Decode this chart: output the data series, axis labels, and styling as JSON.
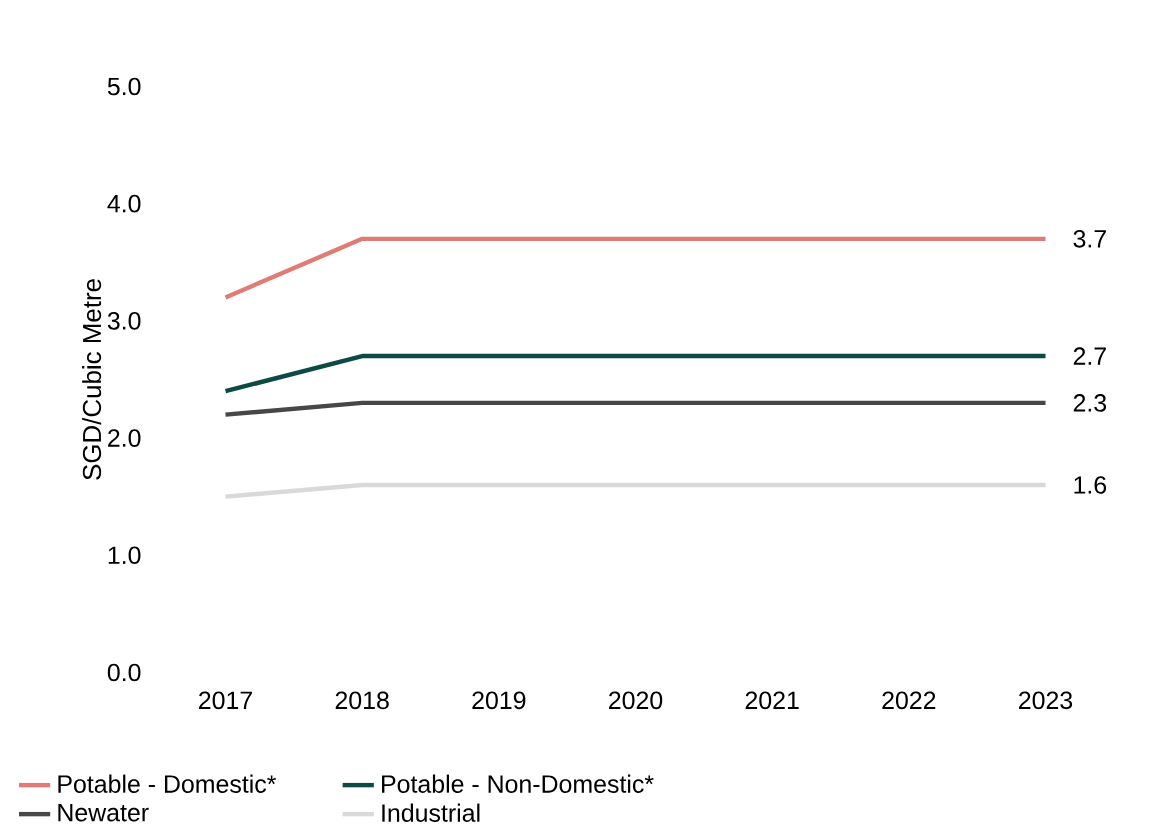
{
  "chart_data": {
    "type": "line",
    "ylabel": "SGD/Cubic Metre",
    "categories": [
      "2017",
      "2018",
      "2019",
      "2020",
      "2021",
      "2022",
      "2023"
    ],
    "series": [
      {
        "name": "Potable - Domestic*",
        "color": "#e07b76",
        "values": [
          3.2,
          3.7,
          3.7,
          3.7,
          3.7,
          3.7,
          3.7
        ],
        "value_labels": [
          null,
          null,
          null,
          null,
          null,
          null,
          "3.7"
        ]
      },
      {
        "name": "Potable - Non-Domestic*",
        "color": "#0b4a45",
        "values": [
          2.4,
          2.7,
          2.7,
          2.7,
          2.7,
          2.7,
          2.7
        ],
        "value_labels": [
          null,
          null,
          null,
          null,
          null,
          null,
          "2.7"
        ]
      },
      {
        "name": "Newater",
        "color": "#474747",
        "values": [
          2.2,
          2.3,
          2.3,
          2.3,
          2.3,
          2.3,
          2.3
        ],
        "value_labels": [
          null,
          null,
          null,
          null,
          null,
          null,
          "2.3"
        ]
      },
      {
        "name": "Industrial",
        "color": "#d9d9d9",
        "values": [
          1.5,
          1.6,
          1.6,
          1.6,
          1.6,
          1.6,
          1.6
        ],
        "value_labels": [
          null,
          null,
          null,
          null,
          null,
          null,
          "1.6"
        ]
      }
    ],
    "ylim": [
      0,
      5
    ],
    "yticks": [
      {
        "value": 0,
        "label": "0.0"
      },
      {
        "value": 1,
        "label": "1.0"
      },
      {
        "value": 2,
        "label": "2.0"
      },
      {
        "value": 3,
        "label": "3.0"
      },
      {
        "value": 4,
        "label": "4.0"
      },
      {
        "value": 5,
        "label": "5.0"
      }
    ],
    "grid": false,
    "legend": "bottom",
    "marker": "none",
    "line_style": "solid"
  }
}
